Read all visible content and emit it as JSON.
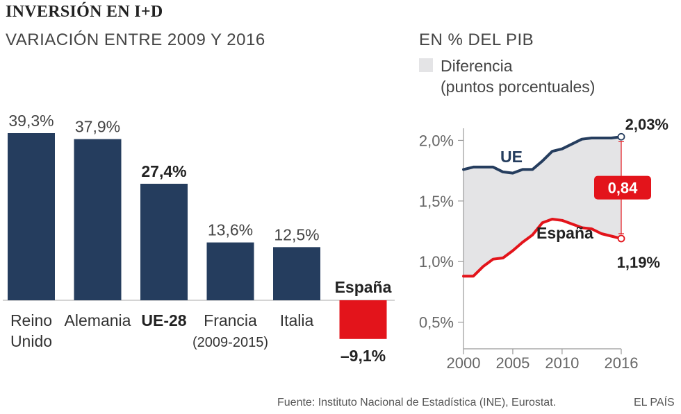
{
  "header": {
    "title": "INVERSIÓN EN I+D",
    "subtitle": "VARIACIÓN ENTRE 2009 Y 2016",
    "right_title": "EN % DEL PIB",
    "legend_label_line1": "Diferencia",
    "legend_label_line2": "(puntos porcentuales)"
  },
  "footer": {
    "source": "Fuente: Instituto Nacional de Estadística (INE), Eurostat.",
    "brand": "EL PAÍS"
  },
  "colors": {
    "bar": "#253d5e",
    "highlight": "#e3141b",
    "ue_line": "#253d5e",
    "espana_line": "#e3141b",
    "diff_area": "#e4e4e6"
  },
  "chart_data": [
    {
      "type": "bar",
      "categories": [
        "Reino Unido",
        "Alemania",
        "UE-28",
        "Francia",
        "Italia",
        "España"
      ],
      "category_lines": [
        [
          "Reino",
          "Unido"
        ],
        [
          "Alemania"
        ],
        [
          "UE-28"
        ],
        [
          "Francia",
          "(2009-2015)"
        ],
        [
          "Italia"
        ],
        [
          ""
        ]
      ],
      "values": [
        39.3,
        37.9,
        27.4,
        13.6,
        12.5,
        -9.1
      ],
      "value_labels": [
        "39,3%",
        "37,9%",
        "27,4%",
        "13,6%",
        "12,5%",
        "–9,1%"
      ],
      "highlight": [
        false,
        false,
        true,
        false,
        false,
        true
      ],
      "negative_label_above": "España",
      "title": "VARIACIÓN ENTRE 2009 Y 2016",
      "xlabel": "",
      "ylabel": "",
      "ylim": [
        -20,
        45
      ]
    },
    {
      "type": "line",
      "title": "EN % DEL PIB",
      "x_ticks": [
        "2000",
        "2005",
        "2010",
        "2016"
      ],
      "y_ticks": [
        "2,0%",
        "1,5%",
        "1,0%",
        "0,5%"
      ],
      "y_tick_values": [
        2.0,
        1.5,
        1.0,
        0.5
      ],
      "xlim": [
        2000,
        2016
      ],
      "ylim": [
        0.28,
        2.1
      ],
      "x": [
        2000,
        2001,
        2002,
        2003,
        2004,
        2005,
        2006,
        2007,
        2008,
        2009,
        2010,
        2011,
        2012,
        2013,
        2014,
        2015,
        2016
      ],
      "series": [
        {
          "name": "UE",
          "values": [
            1.76,
            1.78,
            1.78,
            1.78,
            1.74,
            1.73,
            1.76,
            1.76,
            1.83,
            1.91,
            1.93,
            1.97,
            2.01,
            2.02,
            2.02,
            2.02,
            2.03
          ]
        },
        {
          "name": "España",
          "values": [
            0.88,
            0.88,
            0.96,
            1.02,
            1.03,
            1.09,
            1.16,
            1.22,
            1.32,
            1.35,
            1.34,
            1.31,
            1.28,
            1.27,
            1.23,
            1.21,
            1.19
          ]
        }
      ],
      "end_labels": [
        "2,03%",
        "1,19%"
      ],
      "difference_label": "0,84",
      "legend": [
        "Diferencia (puntos porcentuales)"
      ],
      "grid": false
    }
  ]
}
